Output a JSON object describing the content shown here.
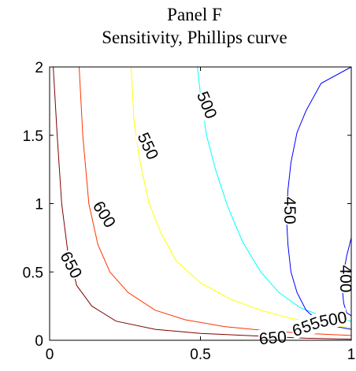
{
  "chart_data": {
    "type": "contour",
    "title": "Panel F",
    "subtitle": "Sensitivity, Phillips curve",
    "xlabel": "",
    "ylabel": "",
    "xlim": [
      0,
      1
    ],
    "ylim": [
      0,
      2
    ],
    "x_ticks": [
      {
        "value": 0,
        "label": "0"
      },
      {
        "value": 0.5,
        "label": "0.5"
      },
      {
        "value": 1,
        "label": "1"
      }
    ],
    "y_ticks": [
      {
        "value": 0,
        "label": "0"
      },
      {
        "value": 0.5,
        "label": "0.5"
      },
      {
        "value": 1,
        "label": "1"
      },
      {
        "value": 1.5,
        "label": "1.5"
      },
      {
        "value": 2,
        "label": "2"
      }
    ],
    "grid": false,
    "contours": [
      {
        "level": 650,
        "color": "#800000",
        "points": [
          [
            0.012,
            2.0
          ],
          [
            0.025,
            1.5
          ],
          [
            0.04,
            1.0
          ],
          [
            0.06,
            0.65
          ],
          [
            0.09,
            0.4
          ],
          [
            0.14,
            0.25
          ],
          [
            0.22,
            0.14
          ],
          [
            0.35,
            0.08
          ],
          [
            0.5,
            0.05
          ],
          [
            0.7,
            0.03
          ],
          [
            0.85,
            0.015
          ],
          [
            1.0,
            0.008
          ]
        ],
        "labels": [
          {
            "text": "650",
            "x": 0.07,
            "y": 0.55,
            "angle": 62
          },
          {
            "text": "650",
            "x": 0.74,
            "y": 0.015,
            "angle": -5
          }
        ]
      },
      {
        "level": 600,
        "color": "#ff3300",
        "points": [
          [
            0.098,
            2.0
          ],
          [
            0.11,
            1.5
          ],
          [
            0.13,
            1.0
          ],
          [
            0.16,
            0.7
          ],
          [
            0.2,
            0.5
          ],
          [
            0.26,
            0.35
          ],
          [
            0.35,
            0.22
          ],
          [
            0.45,
            0.15
          ],
          [
            0.58,
            0.1
          ],
          [
            0.72,
            0.07
          ],
          [
            0.85,
            0.05
          ],
          [
            1.0,
            0.035
          ]
        ],
        "labels": [
          {
            "text": "600",
            "x": 0.18,
            "y": 0.92,
            "angle": 58
          },
          {
            "text": "600",
            "x": 0.85,
            "y": 0.09,
            "angle": -15
          }
        ]
      },
      {
        "level": 550,
        "color": "#ffff00",
        "points": [
          [
            0.27,
            2.0
          ],
          [
            0.28,
            1.6
          ],
          [
            0.3,
            1.3
          ],
          [
            0.33,
            1.0
          ],
          [
            0.37,
            0.78
          ],
          [
            0.42,
            0.58
          ],
          [
            0.5,
            0.42
          ],
          [
            0.6,
            0.3
          ],
          [
            0.7,
            0.22
          ],
          [
            0.8,
            0.16
          ],
          [
            0.9,
            0.12
          ],
          [
            1.0,
            0.09
          ]
        ],
        "labels": [
          {
            "text": "550",
            "x": 0.325,
            "y": 1.42,
            "angle": 65
          },
          {
            "text": "550",
            "x": 0.88,
            "y": 0.12,
            "angle": -20
          }
        ]
      },
      {
        "level": 500,
        "color": "#00ffff",
        "points": [
          [
            0.49,
            2.0
          ],
          [
            0.5,
            1.8
          ],
          [
            0.52,
            1.5
          ],
          [
            0.55,
            1.25
          ],
          [
            0.59,
            0.98
          ],
          [
            0.64,
            0.72
          ],
          [
            0.7,
            0.5
          ],
          [
            0.76,
            0.35
          ],
          [
            0.83,
            0.24
          ],
          [
            0.9,
            0.18
          ],
          [
            1.0,
            0.14
          ]
        ],
        "labels": [
          {
            "text": "500",
            "x": 0.52,
            "y": 1.72,
            "angle": 68
          },
          {
            "text": "500",
            "x": 0.94,
            "y": 0.15,
            "angle": -10
          }
        ]
      },
      {
        "level": 450,
        "color": "#0000ff",
        "points": [
          [
            1.0,
            2.0
          ],
          [
            0.9,
            1.88
          ],
          [
            0.85,
            1.68
          ],
          [
            0.82,
            1.52
          ],
          [
            0.8,
            1.3
          ],
          [
            0.79,
            1.1
          ],
          [
            0.785,
            0.9
          ],
          [
            0.79,
            0.7
          ],
          [
            0.8,
            0.5
          ],
          [
            0.82,
            0.35
          ],
          [
            0.85,
            0.22
          ],
          [
            0.9,
            0.12
          ],
          [
            1.0,
            0.08
          ]
        ],
        "labels": [
          {
            "text": "450",
            "x": 0.795,
            "y": 0.95,
            "angle": 90
          }
        ]
      },
      {
        "level": 400,
        "color": "#0000ff",
        "points": [
          [
            1.0,
            0.75
          ],
          [
            0.985,
            0.62
          ],
          [
            0.975,
            0.5
          ],
          [
            0.97,
            0.38
          ],
          [
            0.975,
            0.27
          ],
          [
            0.985,
            0.2
          ],
          [
            1.0,
            0.18
          ]
        ],
        "labels": [
          {
            "text": "400",
            "x": 0.98,
            "y": 0.45,
            "angle": 90
          }
        ]
      }
    ]
  }
}
